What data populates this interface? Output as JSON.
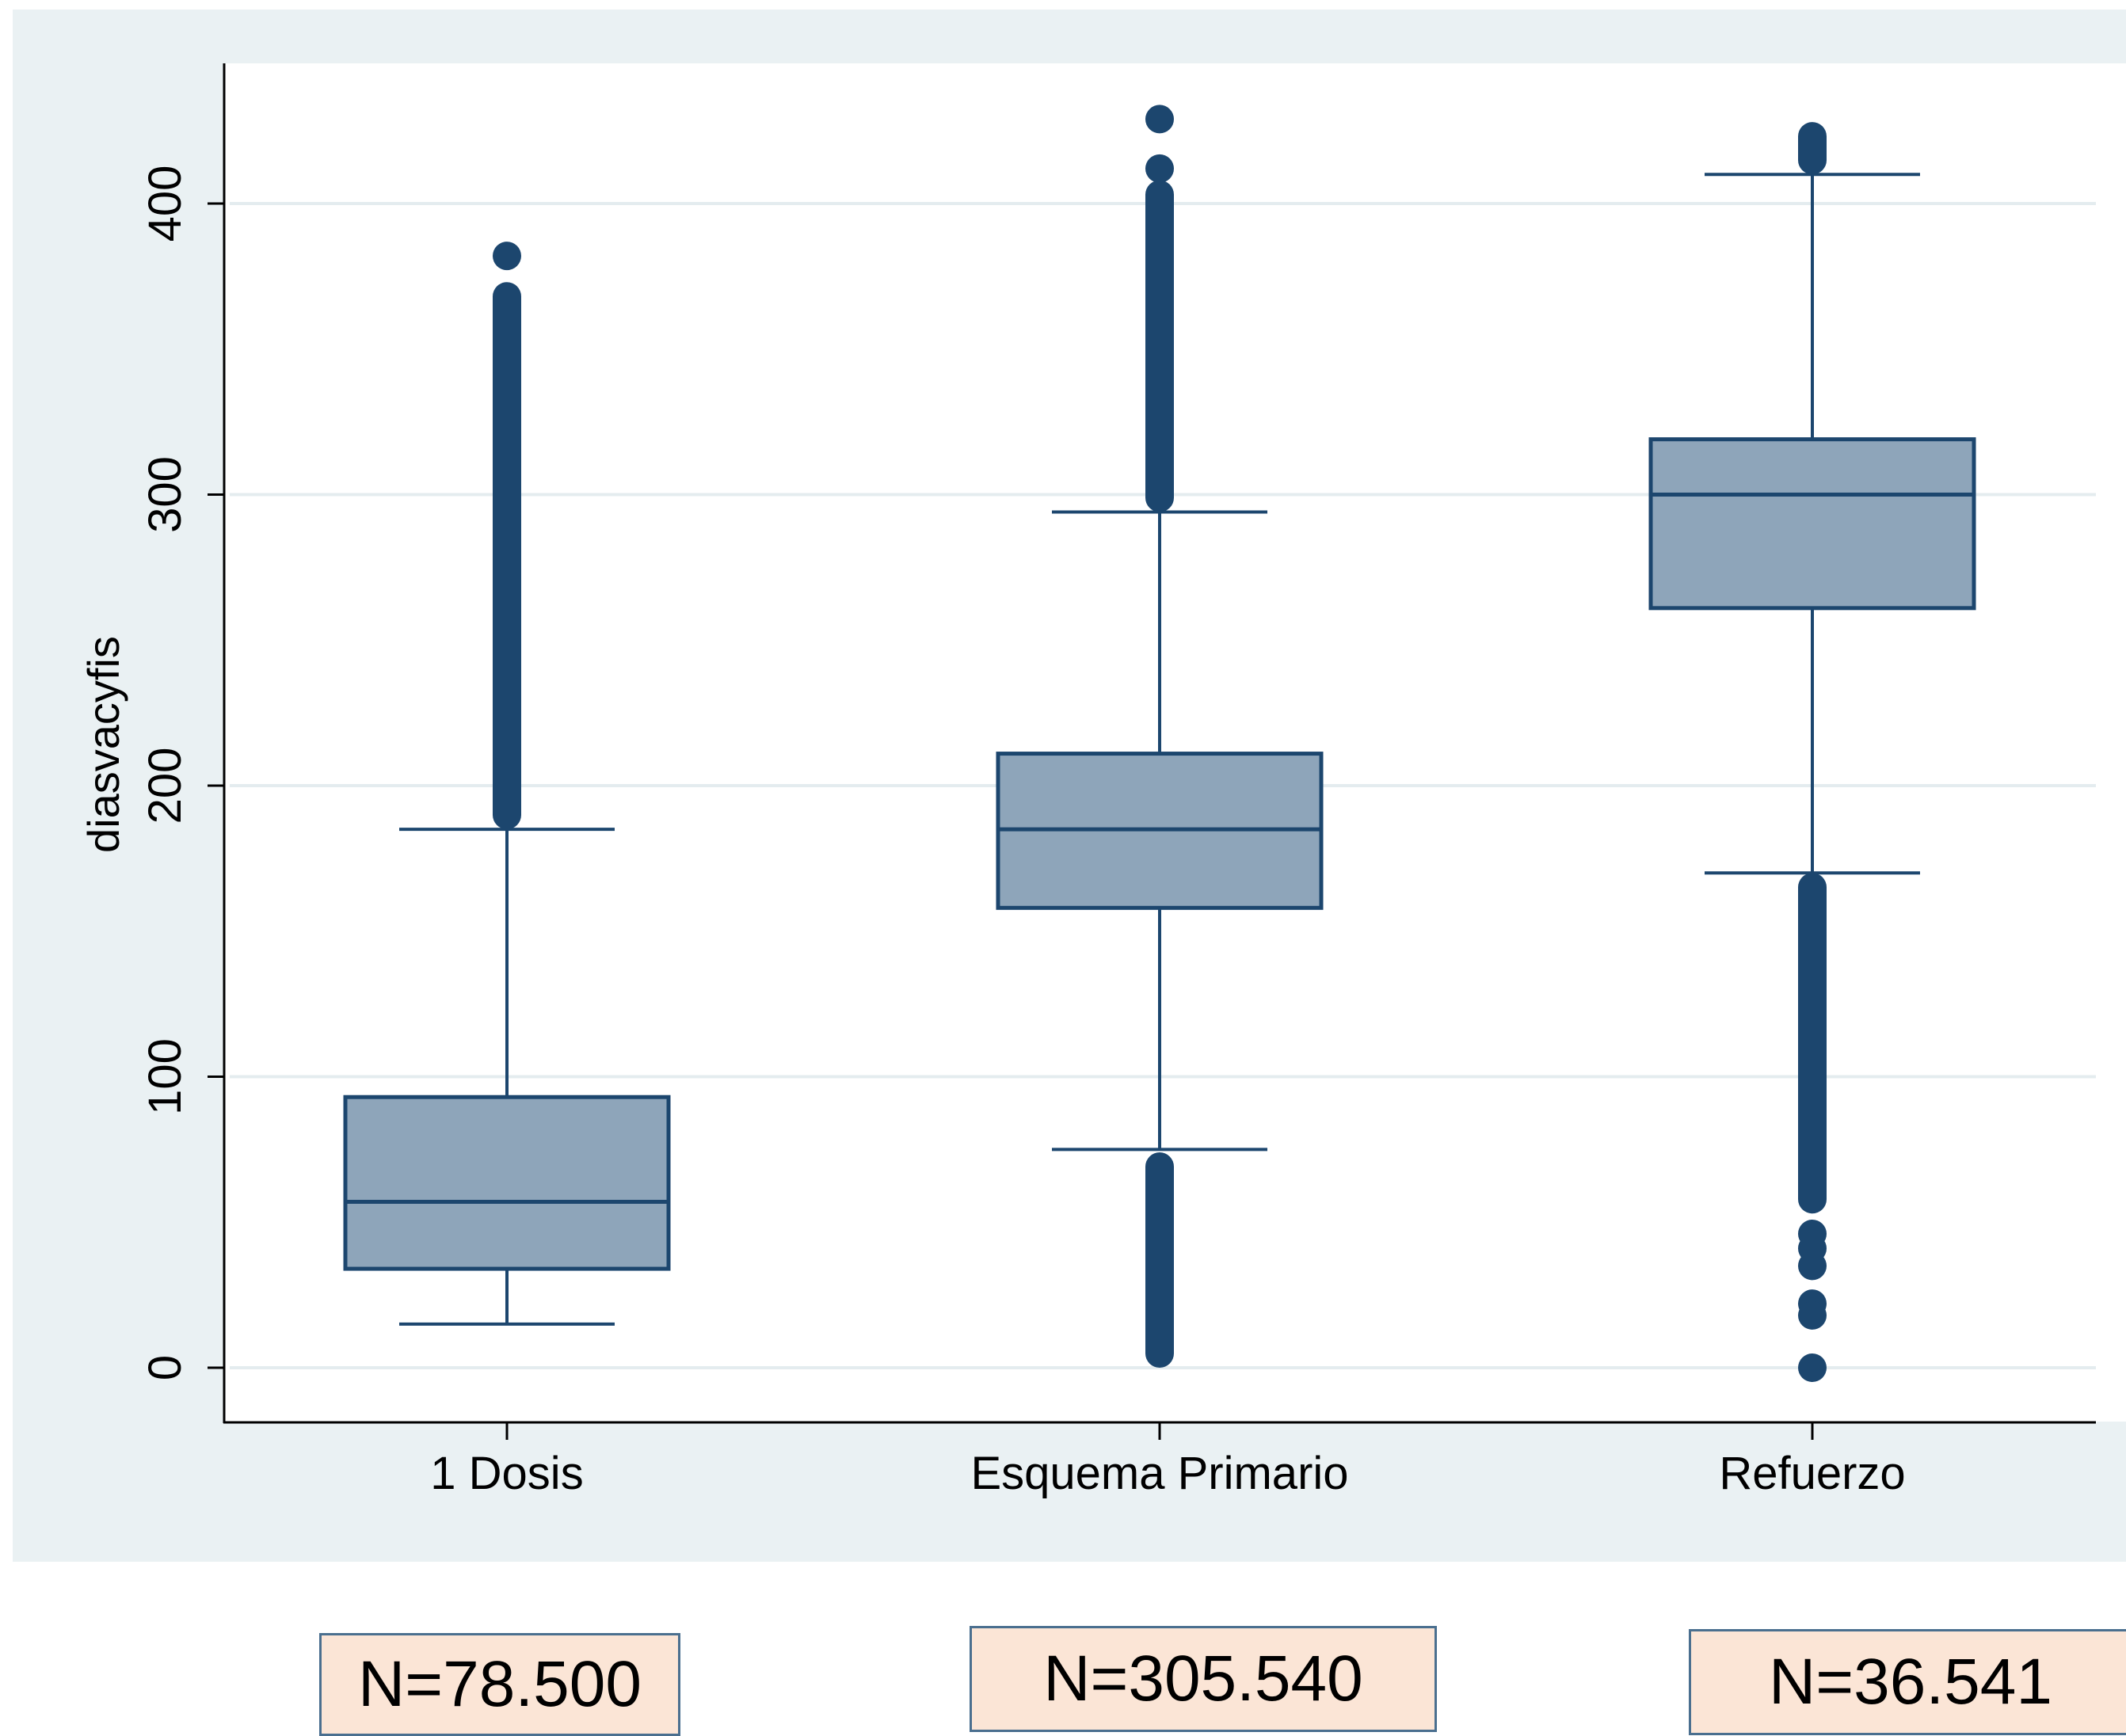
{
  "chart_data": {
    "type": "box",
    "ylabel": "diasvacyfis",
    "xlabel": "",
    "ylim": [
      -10,
      445
    ],
    "yticks": [
      0,
      100,
      200,
      300,
      400
    ],
    "grid": true,
    "legend": "none",
    "colors": {
      "box_fill": "#8ea5ba",
      "stroke": "#1c466e",
      "outlier": "#1c466e",
      "grid": "#e4ecef",
      "background": "#eaf1f3"
    },
    "categories": [
      "1 Dosis",
      "Esquema Primario",
      "Refuerzo"
    ],
    "boxes": [
      {
        "category": "1 Dosis",
        "q1": 34,
        "median": 57,
        "q3": 93,
        "whisker_low": 15,
        "whisker_high": 185,
        "outliers_low": [],
        "outliers_high": [
          382
        ],
        "outlier_band_low": null,
        "outlier_band_high": [
          185,
          373
        ]
      },
      {
        "category": "Esquema Primario",
        "q1": 158,
        "median": 185,
        "q3": 211,
        "whisker_low": 75,
        "whisker_high": 294,
        "outliers_low": [],
        "outliers_high": [
          429,
          412
        ],
        "outlier_band_low": [
          0,
          74
        ],
        "outlier_band_high": [
          294,
          408
        ]
      },
      {
        "category": "Refuerzo",
        "q1": 261,
        "median": 300,
        "q3": 319,
        "whisker_low": 170,
        "whisker_high": 410,
        "outliers_low": [
          46,
          41,
          35,
          22,
          18,
          0
        ],
        "outliers_high": [],
        "outlier_band_low": [
          53,
          170
        ],
        "outlier_band_high": [
          410,
          428
        ]
      }
    ]
  },
  "annotations": [
    {
      "category": "1 Dosis",
      "text": "N=78.500"
    },
    {
      "category": "Esquema Primario",
      "text": "N=305.540"
    },
    {
      "category": "Refuerzo",
      "text": "N=36.541"
    }
  ]
}
